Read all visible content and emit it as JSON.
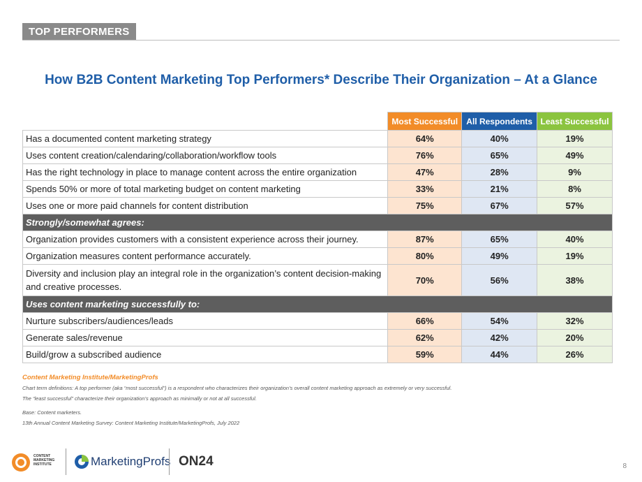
{
  "header": {
    "section_tag": "TOP PERFORMERS"
  },
  "title": "How B2B Content Marketing Top Performers* Describe Their Organization – At a Glance",
  "table": {
    "columns": [
      "Most Successful",
      "All Respondents",
      "Least Successful"
    ],
    "rows1": [
      {
        "label": "Has a documented content marketing strategy",
        "most": "64%",
        "all": "40%",
        "least": "19%"
      },
      {
        "label": "Uses content creation/calendaring/collaboration/workflow tools",
        "most": "76%",
        "all": "65%",
        "least": "49%"
      },
      {
        "label": "Has the right technology in place to manage content across the entire organization",
        "most": "47%",
        "all": "28%",
        "least": "9%"
      },
      {
        "label": "Spends 50% or more of total marketing budget on content marketing",
        "most": "33%",
        "all": "21%",
        "least": "8%"
      },
      {
        "label": "Uses one or more paid channels for content distribution",
        "most": "75%",
        "all": "67%",
        "least": "57%"
      }
    ],
    "group2": "Strongly/somewhat agrees:",
    "rows2": [
      {
        "label": "Organization provides customers with a consistent experience across their journey.",
        "most": "87%",
        "all": "65%",
        "least": "40%"
      },
      {
        "label": "Organization measures content performance accurately.",
        "most": "80%",
        "all": "49%",
        "least": "19%"
      },
      {
        "label": "Diversity and inclusion play an integral role in the organization’s content decision-making and creative processes.",
        "most": "70%",
        "all": "56%",
        "least": "38%"
      }
    ],
    "group3": "Uses content marketing successfully to:",
    "rows3": [
      {
        "label": "Nurture subscribers/audiences/leads",
        "most": "66%",
        "all": "54%",
        "least": "32%"
      },
      {
        "label": "Generate sales/revenue",
        "most": "62%",
        "all": "42%",
        "least": "20%"
      },
      {
        "label": "Build/grow a subscribed audience",
        "most": "59%",
        "all": "44%",
        "least": "26%"
      }
    ]
  },
  "footnotes": {
    "source": "Content Marketing Institute/MarketingProfs",
    "definition1": "Chart term definitions: A top performer (aka “most successful”) is a respondent who characterizes their organization’s overall content marketing approach as extremely or very successful.",
    "definition2": "The “least successful” characterize their organization’s approach as minimally or not at all successful.",
    "base": "Base: Content marketers.",
    "survey": "13th Annual Content Marketing Survey: Content Marketing Institute/MarketingProfs, July 2022"
  },
  "footer": {
    "cmi_logo_text": "CONTENT MARKETING INSTITUTE",
    "marketingprofs_text": "MarketingProfs",
    "on24_text": "ON24",
    "page_number": "8"
  },
  "colors": {
    "accent_orange": "#f28c28",
    "accent_blue": "#1f5ea8",
    "accent_green": "#8bc43f"
  }
}
